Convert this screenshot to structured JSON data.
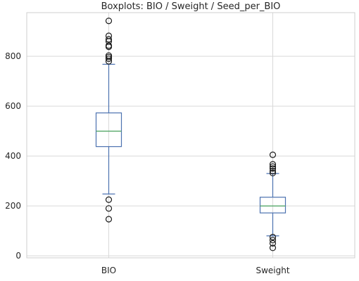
{
  "chart_data": {
    "type": "box",
    "title": "Boxplots: BIO / Sweight / Seed_per_BIO",
    "xlabel": "",
    "ylabel": "",
    "ylim": [
      -8,
      975
    ],
    "yticks": [
      0,
      200,
      400,
      600,
      800
    ],
    "grid": true,
    "colors": {
      "box": "#4c72b0",
      "median": "#55a868",
      "outlier": "#1a1a1a",
      "grid": "#d9d9d9"
    },
    "series": [
      {
        "name": "BIO",
        "whisker_low": 248,
        "q1": 438,
        "median": 500,
        "q3": 573,
        "whisker_high": 768,
        "outliers": [
          147,
          190,
          225,
          780,
          790,
          797,
          803,
          838,
          843,
          860,
          868,
          882,
          942
        ]
      },
      {
        "name": "Sweight",
        "whisker_low": 80,
        "q1": 172,
        "median": 200,
        "q3": 235,
        "whisker_high": 330,
        "outliers": [
          32,
          50,
          63,
          75,
          332,
          340,
          350,
          358,
          367,
          405
        ]
      }
    ]
  }
}
